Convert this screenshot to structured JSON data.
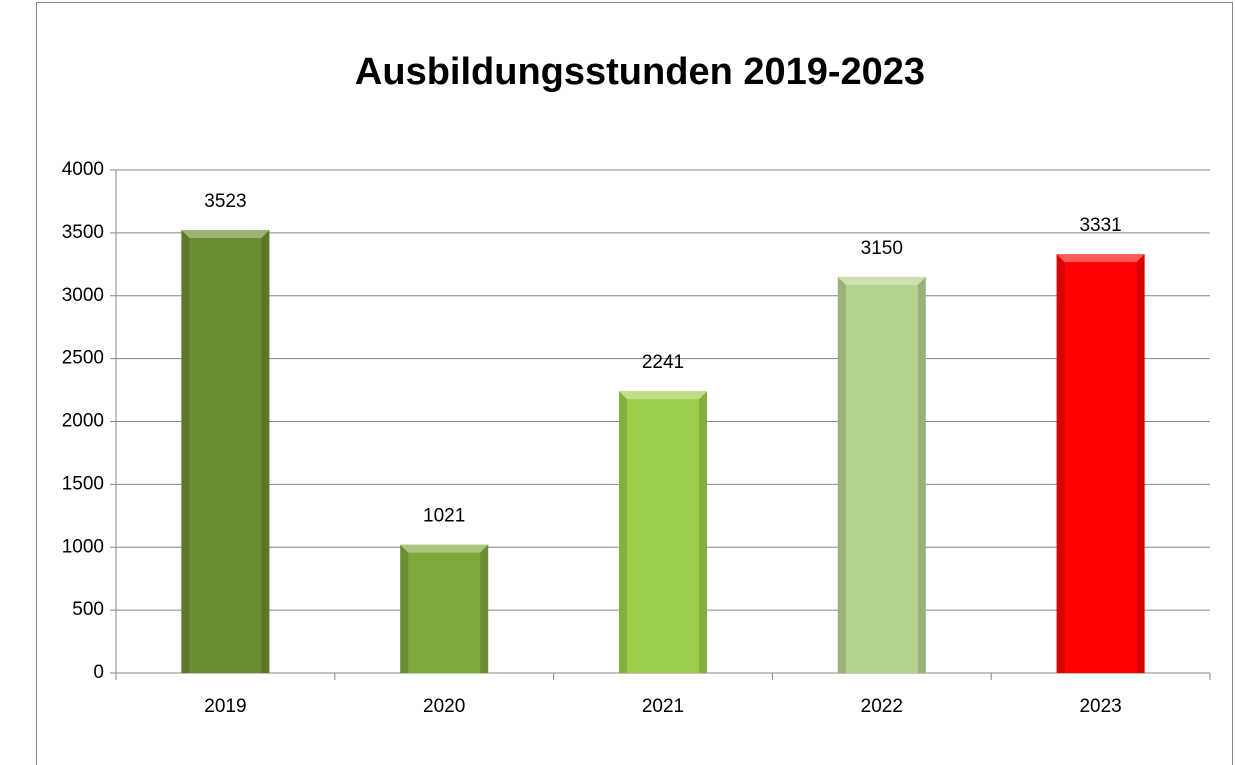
{
  "chart_data": {
    "type": "bar",
    "title": "Ausbildungsstunden 2019-2023",
    "categories": [
      "2019",
      "2020",
      "2021",
      "2022",
      "2023"
    ],
    "values": [
      3523,
      1021,
      2241,
      3150,
      3331
    ],
    "colors": [
      "#6a8d2f",
      "#7fa83c",
      "#9ccd48",
      "#b3d28e",
      "#ff0000"
    ],
    "ylim": [
      0,
      4000
    ],
    "yticks": [
      0,
      500,
      1000,
      1500,
      2000,
      2500,
      3000,
      3500,
      4000
    ],
    "grid": true
  }
}
